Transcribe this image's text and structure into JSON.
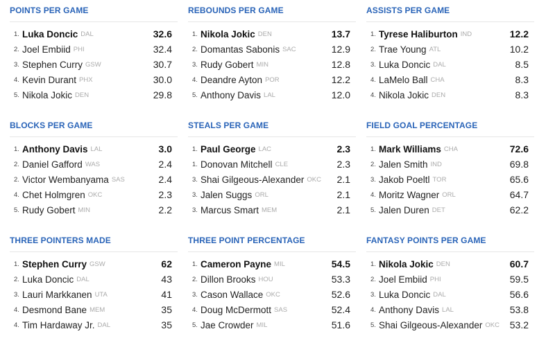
{
  "colors": {
    "title": "#2a64b8",
    "team": "#aaaaaa",
    "divider": "#e6e6e6"
  },
  "categories": [
    {
      "title": "POINTS PER GAME",
      "leaders": [
        {
          "rank": "1.",
          "name": "Luka Doncic",
          "team": "DAL",
          "value": "32.6"
        },
        {
          "rank": "2.",
          "name": "Joel Embiid",
          "team": "PHI",
          "value": "32.4"
        },
        {
          "rank": "3.",
          "name": "Stephen Curry",
          "team": "GSW",
          "value": "30.7"
        },
        {
          "rank": "4.",
          "name": "Kevin Durant",
          "team": "PHX",
          "value": "30.0"
        },
        {
          "rank": "5.",
          "name": "Nikola Jokic",
          "team": "DEN",
          "value": "29.8"
        }
      ]
    },
    {
      "title": "REBOUNDS PER GAME",
      "leaders": [
        {
          "rank": "1.",
          "name": "Nikola Jokic",
          "team": "DEN",
          "value": "13.7"
        },
        {
          "rank": "2.",
          "name": "Domantas Sabonis",
          "team": "SAC",
          "value": "12.9"
        },
        {
          "rank": "3.",
          "name": "Rudy Gobert",
          "team": "MIN",
          "value": "12.8"
        },
        {
          "rank": "4.",
          "name": "Deandre Ayton",
          "team": "POR",
          "value": "12.2"
        },
        {
          "rank": "5.",
          "name": "Anthony Davis",
          "team": "LAL",
          "value": "12.0"
        }
      ]
    },
    {
      "title": "ASSISTS PER GAME",
      "leaders": [
        {
          "rank": "1.",
          "name": "Tyrese Haliburton",
          "team": "IND",
          "value": "12.2"
        },
        {
          "rank": "2.",
          "name": "Trae Young",
          "team": "ATL",
          "value": "10.2"
        },
        {
          "rank": "3.",
          "name": "Luka Doncic",
          "team": "DAL",
          "value": "8.5"
        },
        {
          "rank": "4.",
          "name": "LaMelo Ball",
          "team": "CHA",
          "value": "8.3"
        },
        {
          "rank": "4.",
          "name": "Nikola Jokic",
          "team": "DEN",
          "value": "8.3"
        }
      ]
    },
    {
      "title": "BLOCKS PER GAME",
      "leaders": [
        {
          "rank": "1.",
          "name": "Anthony Davis",
          "team": "LAL",
          "value": "3.0"
        },
        {
          "rank": "2.",
          "name": "Daniel Gafford",
          "team": "WAS",
          "value": "2.4"
        },
        {
          "rank": "2.",
          "name": "Victor Wembanyama",
          "team": "SAS",
          "value": "2.4"
        },
        {
          "rank": "4.",
          "name": "Chet Holmgren",
          "team": "OKC",
          "value": "2.3"
        },
        {
          "rank": "5.",
          "name": "Rudy Gobert",
          "team": "MIN",
          "value": "2.2"
        }
      ]
    },
    {
      "title": "STEALS PER GAME",
      "leaders": [
        {
          "rank": "1.",
          "name": "Paul George",
          "team": "LAC",
          "value": "2.3"
        },
        {
          "rank": "1.",
          "name": "Donovan Mitchell",
          "team": "CLE",
          "value": "2.3"
        },
        {
          "rank": "3.",
          "name": "Shai Gilgeous-Alexander",
          "team": "OKC",
          "value": "2.1"
        },
        {
          "rank": "3.",
          "name": "Jalen Suggs",
          "team": "ORL",
          "value": "2.1"
        },
        {
          "rank": "3.",
          "name": "Marcus Smart",
          "team": "MEM",
          "value": "2.1"
        }
      ]
    },
    {
      "title": "FIELD GOAL PERCENTAGE",
      "leaders": [
        {
          "rank": "1.",
          "name": "Mark Williams",
          "team": "CHA",
          "value": "72.6"
        },
        {
          "rank": "2.",
          "name": "Jalen Smith",
          "team": "IND",
          "value": "69.8"
        },
        {
          "rank": "3.",
          "name": "Jakob Poeltl",
          "team": "TOR",
          "value": "65.6"
        },
        {
          "rank": "4.",
          "name": "Moritz Wagner",
          "team": "ORL",
          "value": "64.7"
        },
        {
          "rank": "5.",
          "name": "Jalen Duren",
          "team": "DET",
          "value": "62.2"
        }
      ]
    },
    {
      "title": "THREE POINTERS MADE",
      "leaders": [
        {
          "rank": "1.",
          "name": "Stephen Curry",
          "team": "GSW",
          "value": "62"
        },
        {
          "rank": "2.",
          "name": "Luka Doncic",
          "team": "DAL",
          "value": "43"
        },
        {
          "rank": "3.",
          "name": "Lauri Markkanen",
          "team": "UTA",
          "value": "41"
        },
        {
          "rank": "4.",
          "name": "Desmond Bane",
          "team": "MEM",
          "value": "35"
        },
        {
          "rank": "4.",
          "name": "Tim Hardaway Jr.",
          "team": "DAL",
          "value": "35"
        }
      ]
    },
    {
      "title": "THREE POINT PERCENTAGE",
      "leaders": [
        {
          "rank": "1.",
          "name": "Cameron Payne",
          "team": "MIL",
          "value": "54.5"
        },
        {
          "rank": "2.",
          "name": "Dillon Brooks",
          "team": "HOU",
          "value": "53.3"
        },
        {
          "rank": "3.",
          "name": "Cason Wallace",
          "team": "OKC",
          "value": "52.6"
        },
        {
          "rank": "4.",
          "name": "Doug McDermott",
          "team": "SAS",
          "value": "52.4"
        },
        {
          "rank": "5.",
          "name": "Jae Crowder",
          "team": "MIL",
          "value": "51.6"
        }
      ]
    },
    {
      "title": "FANTASY POINTS PER GAME",
      "leaders": [
        {
          "rank": "1.",
          "name": "Nikola Jokic",
          "team": "DEN",
          "value": "60.7"
        },
        {
          "rank": "2.",
          "name": "Joel Embiid",
          "team": "PHI",
          "value": "59.5"
        },
        {
          "rank": "3.",
          "name": "Luka Doncic",
          "team": "DAL",
          "value": "56.6"
        },
        {
          "rank": "4.",
          "name": "Anthony Davis",
          "team": "LAL",
          "value": "53.8"
        },
        {
          "rank": "5.",
          "name": "Shai Gilgeous-Alexander",
          "team": "OKC",
          "value": "53.2"
        }
      ]
    }
  ]
}
